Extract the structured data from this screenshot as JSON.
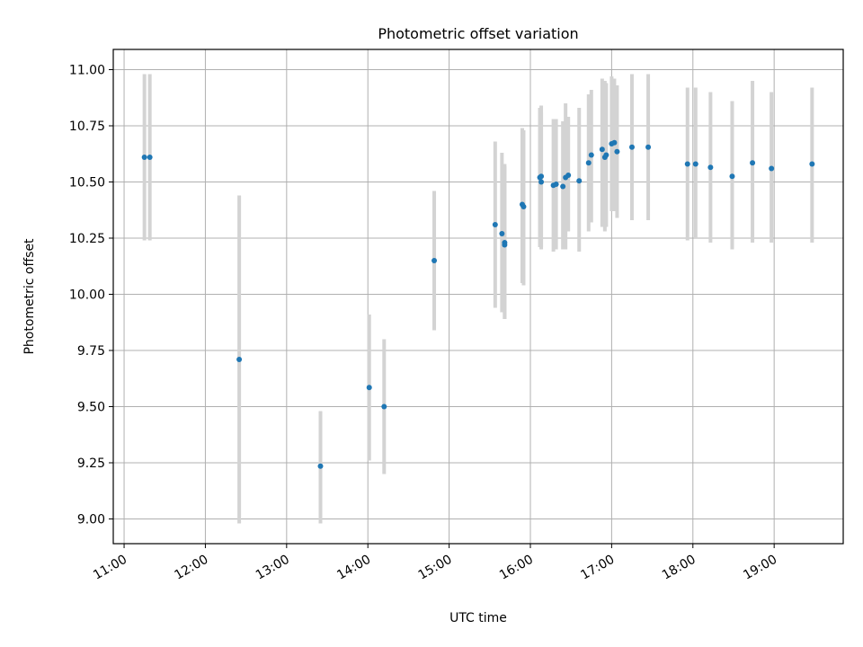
{
  "chart_data": {
    "type": "scatter",
    "title": "Photometric offset variation",
    "xlabel": "UTC time",
    "ylabel": "Photometric offset",
    "x_unit": "UTC time",
    "xlim": [
      "10:52",
      "19:51"
    ],
    "ylim": [
      8.89,
      11.09
    ],
    "x_ticks": [
      "11:00",
      "12:00",
      "13:00",
      "14:00",
      "15:00",
      "16:00",
      "17:00",
      "18:00",
      "19:00"
    ],
    "y_ticks": [
      "9.00",
      "9.25",
      "9.50",
      "9.75",
      "10.00",
      "10.25",
      "10.50",
      "10.75",
      "11.00"
    ],
    "grid": true,
    "legend": "none",
    "colors": {
      "marker": "#1f77b4",
      "errorbar": "#d3d3d3",
      "grid": "#b0b0b0"
    },
    "points": [
      {
        "x": "11:15",
        "y": 10.61,
        "yerr_low": 10.24,
        "yerr_high": 10.98
      },
      {
        "x": "11:19",
        "y": 10.61,
        "yerr_low": 10.24,
        "yerr_high": 10.98
      },
      {
        "x": "12:25",
        "y": 9.71,
        "yerr_low": 8.98,
        "yerr_high": 10.44
      },
      {
        "x": "13:25",
        "y": 9.235,
        "yerr_low": 8.98,
        "yerr_high": 9.48
      },
      {
        "x": "14:01",
        "y": 9.585,
        "yerr_low": 9.26,
        "yerr_high": 9.91
      },
      {
        "x": "14:12",
        "y": 9.5,
        "yerr_low": 9.2,
        "yerr_high": 9.8
      },
      {
        "x": "14:49",
        "y": 10.15,
        "yerr_low": 9.84,
        "yerr_high": 10.46
      },
      {
        "x": "15:34",
        "y": 10.31,
        "yerr_low": 9.94,
        "yerr_high": 10.68
      },
      {
        "x": "15:39",
        "y": 10.27,
        "yerr_low": 9.92,
        "yerr_high": 10.63
      },
      {
        "x": "15:41",
        "y": 10.23,
        "yerr_low": 9.89,
        "yerr_high": 10.58
      },
      {
        "x": "15:41",
        "y": 10.22,
        "yerr_low": 9.89,
        "yerr_high": 10.57
      },
      {
        "x": "15:54",
        "y": 10.4,
        "yerr_low": 10.05,
        "yerr_high": 10.74
      },
      {
        "x": "15:55",
        "y": 10.39,
        "yerr_low": 10.04,
        "yerr_high": 10.73
      },
      {
        "x": "16:07",
        "y": 10.52,
        "yerr_low": 10.21,
        "yerr_high": 10.83
      },
      {
        "x": "16:08",
        "y": 10.5,
        "yerr_low": 10.2,
        "yerr_high": 10.81
      },
      {
        "x": "16:08",
        "y": 10.525,
        "yerr_low": 10.21,
        "yerr_high": 10.84
      },
      {
        "x": "16:17",
        "y": 10.485,
        "yerr_low": 10.19,
        "yerr_high": 10.78
      },
      {
        "x": "16:19",
        "y": 10.49,
        "yerr_low": 10.2,
        "yerr_high": 10.78
      },
      {
        "x": "16:24",
        "y": 10.48,
        "yerr_low": 10.2,
        "yerr_high": 10.77
      },
      {
        "x": "16:26",
        "y": 10.52,
        "yerr_low": 10.2,
        "yerr_high": 10.85
      },
      {
        "x": "16:28",
        "y": 10.53,
        "yerr_low": 10.28,
        "yerr_high": 10.79
      },
      {
        "x": "16:36",
        "y": 10.505,
        "yerr_low": 10.19,
        "yerr_high": 10.83
      },
      {
        "x": "16:43",
        "y": 10.585,
        "yerr_low": 10.28,
        "yerr_high": 10.89
      },
      {
        "x": "16:45",
        "y": 10.62,
        "yerr_low": 10.32,
        "yerr_high": 10.91
      },
      {
        "x": "16:53",
        "y": 10.645,
        "yerr_low": 10.3,
        "yerr_high": 10.96
      },
      {
        "x": "16:55",
        "y": 10.61,
        "yerr_low": 10.28,
        "yerr_high": 10.95
      },
      {
        "x": "16:56",
        "y": 10.62,
        "yerr_low": 10.3,
        "yerr_high": 10.94
      },
      {
        "x": "17:00",
        "y": 10.67,
        "yerr_low": 10.37,
        "yerr_high": 10.97
      },
      {
        "x": "17:02",
        "y": 10.675,
        "yerr_low": 10.37,
        "yerr_high": 10.96
      },
      {
        "x": "17:04",
        "y": 10.635,
        "yerr_low": 10.34,
        "yerr_high": 10.93
      },
      {
        "x": "17:15",
        "y": 10.655,
        "yerr_low": 10.33,
        "yerr_high": 10.98
      },
      {
        "x": "17:27",
        "y": 10.655,
        "yerr_low": 10.33,
        "yerr_high": 10.98
      },
      {
        "x": "17:56",
        "y": 10.58,
        "yerr_low": 10.24,
        "yerr_high": 10.92
      },
      {
        "x": "18:02",
        "y": 10.58,
        "yerr_low": 10.25,
        "yerr_high": 10.92
      },
      {
        "x": "18:13",
        "y": 10.565,
        "yerr_low": 10.23,
        "yerr_high": 10.9
      },
      {
        "x": "18:29",
        "y": 10.525,
        "yerr_low": 10.2,
        "yerr_high": 10.86
      },
      {
        "x": "18:44",
        "y": 10.585,
        "yerr_low": 10.23,
        "yerr_high": 10.95
      },
      {
        "x": "18:58",
        "y": 10.56,
        "yerr_low": 10.23,
        "yerr_high": 10.9
      },
      {
        "x": "19:28",
        "y": 10.58,
        "yerr_low": 10.23,
        "yerr_high": 10.92
      }
    ]
  }
}
